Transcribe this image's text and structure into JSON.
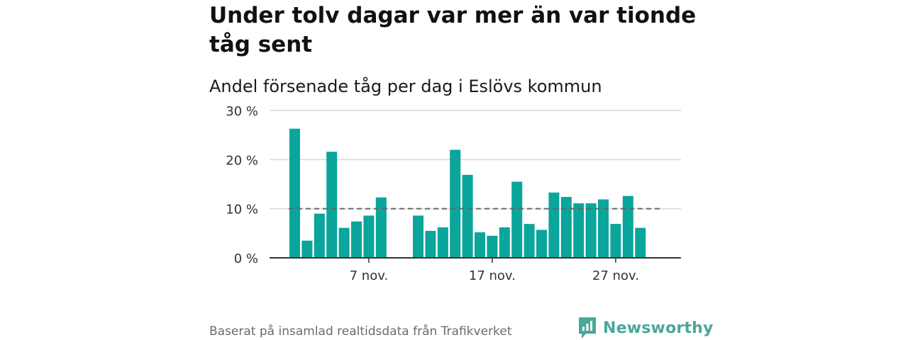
{
  "title": "Under tolv dagar var mer än var tionde tåg sent",
  "subtitle": "Andel försenade tåg per dag i Eslövs kommun",
  "footer": "Baserat på insamlad realtidsdata från Trafikverket",
  "brand": "Newsworthy",
  "colors": {
    "bar": "#0aa59b",
    "reference": "#666666",
    "grid": "#d9d9d9",
    "brand": "#4aa79a"
  },
  "chart_data": {
    "type": "bar",
    "x": [
      1,
      2,
      3,
      4,
      5,
      6,
      7,
      8,
      9,
      10,
      11,
      12,
      13,
      14,
      15,
      16,
      17,
      18,
      19,
      20,
      21,
      22,
      23,
      24,
      25,
      26,
      27,
      28,
      29,
      30
    ],
    "values": [
      26.3,
      3.5,
      9.0,
      21.6,
      6.1,
      7.4,
      8.6,
      12.3,
      null,
      null,
      8.6,
      5.5,
      6.2,
      22.0,
      16.9,
      5.2,
      4.5,
      6.2,
      15.5,
      6.9,
      5.7,
      13.3,
      12.4,
      11.1,
      11.1,
      11.9,
      6.9,
      12.6,
      6.1,
      null
    ],
    "reference_line": 10,
    "ylim": [
      0,
      30
    ],
    "yticks": [
      0,
      10,
      20,
      30
    ],
    "ytick_labels": [
      "0 %",
      "10 %",
      "20 %",
      "30 %"
    ],
    "xticks": [
      7,
      17,
      27
    ],
    "xtick_labels": [
      "7 nov.",
      "17 nov.",
      "27 nov."
    ],
    "grid": true
  }
}
